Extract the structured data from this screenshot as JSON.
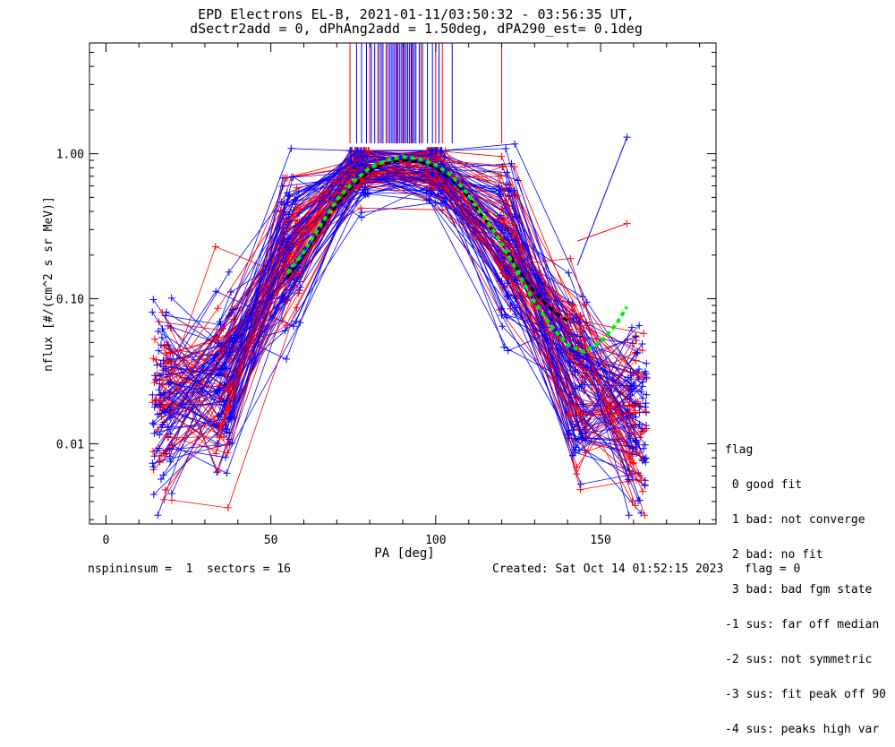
{
  "title_line1": "EPD Electrons EL-B, 2021-01-11/03:50:32 - 03:56:35 UT,",
  "title_line2": "dSectr2add = 0, dPhAng2add = 1.50deg, dPA290_est=   0.1deg",
  "legend": {
    "title": "flag",
    "items": [
      " 0 good fit",
      " 1 bad: not converge",
      " 2 bad: no fit",
      " 3 bad: bad fgm state",
      "-1 sus: far off median",
      "-2 sus: not symmetric",
      "-3 sus: fit peak off 90",
      "-4 sus: peaks high var"
    ]
  },
  "footer": {
    "left": "nspininsum =  1  sectors = 16",
    "right": "Created: Sat Oct 14 01:52:15 2023   flag = 0"
  },
  "colors": {
    "red": "#ff0000",
    "blue": "#0000ff",
    "green": "#00ee00",
    "black": "#000000"
  },
  "chart_data": {
    "type": "line",
    "xlabel": "PA [deg]",
    "ylabel": "nflux [#/(cm^2 s sr MeV)]",
    "xlim": [
      -5,
      185
    ],
    "ylim_log": [
      0.0028,
      5.8
    ],
    "yscale": "log",
    "xticks": [
      0,
      50,
      100,
      150
    ],
    "yticks": [
      0.01,
      0.1,
      1.0
    ],
    "ytick_labels": [
      "0.01",
      "0.10",
      "1.00"
    ],
    "pa_bins": [
      17,
      36,
      56,
      77,
      100,
      122,
      143,
      161
    ],
    "profile_shape": [
      0.018,
      0.03,
      0.22,
      0.8,
      0.8,
      0.25,
      0.028,
      0.015
    ],
    "num_profiles": 130,
    "green_fit": {
      "x": [
        55,
        60,
        65,
        70,
        75,
        80,
        85,
        90,
        95,
        100,
        105,
        110,
        115,
        120,
        125,
        130,
        135,
        140,
        145,
        150,
        155,
        158
      ],
      "y": [
        0.15,
        0.21,
        0.32,
        0.48,
        0.64,
        0.8,
        0.9,
        0.95,
        0.92,
        0.84,
        0.7,
        0.52,
        0.36,
        0.24,
        0.15,
        0.095,
        0.065,
        0.048,
        0.043,
        0.05,
        0.068,
        0.088
      ]
    },
    "black_fit": {
      "x": [
        55,
        60,
        65,
        70,
        75,
        80,
        85,
        90,
        95,
        100,
        105,
        110,
        115,
        120,
        125,
        130,
        135,
        140
      ],
      "y": [
        0.14,
        0.2,
        0.3,
        0.45,
        0.6,
        0.76,
        0.86,
        0.9,
        0.88,
        0.8,
        0.66,
        0.5,
        0.35,
        0.24,
        0.16,
        0.11,
        0.085,
        0.07
      ]
    },
    "outliers": [
      {
        "from": [
          143,
          0.17
        ],
        "to": [
          158,
          1.3
        ],
        "color": "blue"
      },
      {
        "from": [
          143,
          0.25
        ],
        "to": [
          158,
          0.33
        ],
        "color": "red"
      }
    ],
    "vertical_lines": {
      "blue": [
        76,
        77.5,
        79,
        80.5,
        81.5,
        82.5,
        83.5,
        84,
        85,
        86,
        86.5,
        87,
        87.5,
        88,
        88.5,
        89,
        89.5,
        90,
        90.5,
        91,
        91.5,
        92,
        92.5,
        93,
        93.5,
        94,
        95,
        96,
        97.5,
        99,
        101,
        105
      ],
      "red": [
        74,
        80,
        83,
        85.5,
        88.3,
        90.2,
        92.7,
        95.5,
        100,
        102,
        120
      ]
    }
  }
}
